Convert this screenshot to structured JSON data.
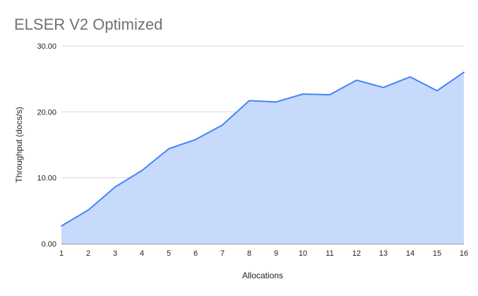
{
  "chart_data": {
    "type": "area",
    "title": "ELSER V2 Optimized",
    "xlabel": "Allocations",
    "ylabel": "Throughput (docs/s)",
    "x": [
      1,
      2,
      3,
      4,
      5,
      6,
      7,
      8,
      9,
      10,
      11,
      12,
      13,
      14,
      15,
      16
    ],
    "x_tick_labels": [
      "1",
      "2",
      "3",
      "4",
      "5",
      "6",
      "7",
      "8",
      "9",
      "10",
      "11",
      "12",
      "13",
      "14",
      "15",
      "16"
    ],
    "series": [
      {
        "name": "Throughput",
        "values": [
          2.7,
          5.1,
          8.6,
          11.1,
          14.4,
          15.8,
          18.0,
          21.7,
          21.5,
          22.7,
          22.6,
          24.8,
          23.7,
          25.3,
          23.2,
          26.0
        ]
      }
    ],
    "ylim": [
      0,
      30
    ],
    "y_ticks": [
      0,
      10,
      20,
      30
    ],
    "y_tick_labels": [
      "0.00",
      "10.00",
      "20.00",
      "30.00"
    ],
    "grid": "horizontal",
    "legend": "none",
    "colors": {
      "line": "#4285f4",
      "fill": "#c7dafc",
      "grid": "#d9d9d9",
      "axis": "#333333",
      "tick_text": "#222222",
      "title_text": "#717171"
    }
  }
}
